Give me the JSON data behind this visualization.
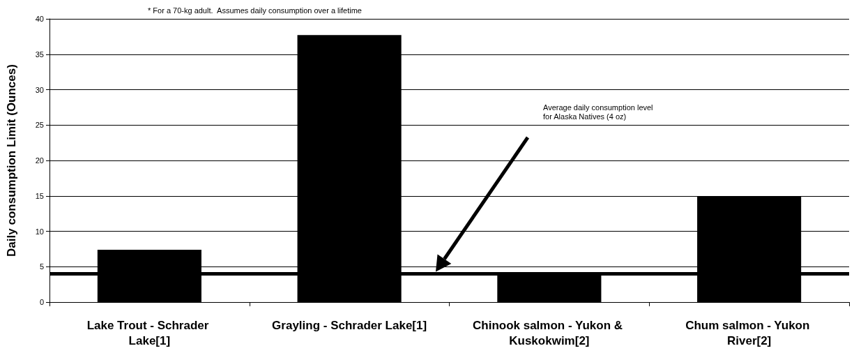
{
  "chart_data": {
    "type": "bar",
    "ylabel": "Daily consumption Limit (Ounces)",
    "categories": [
      "Lake Trout - Schrader Lake[1]",
      "Grayling - Schrader Lake[1]",
      "Chinook salmon - Yukon & Kuskokwim[2]",
      "Chum salmon - Yukon River[2]"
    ],
    "values": [
      7.4,
      37.7,
      4.1,
      14.9
    ],
    "color": "#000000",
    "ylim": [
      0,
      40
    ],
    "yticks": [
      0,
      5,
      10,
      15,
      20,
      25,
      30,
      35,
      40
    ],
    "grid": "y",
    "ref_lines": [
      {
        "axis": "y",
        "value": 4,
        "label": "Average daily consumption level for Alaska Natives (4 oz)",
        "color": "#000000"
      }
    ],
    "annotations": [
      "* For a 70-kg adult.  Assumes daily consumption over a lifetime"
    ]
  }
}
